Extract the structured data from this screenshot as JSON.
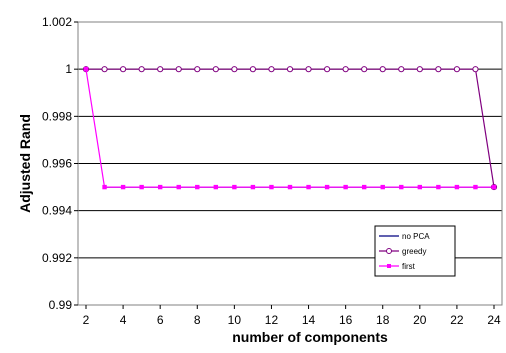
{
  "chart_data": {
    "type": "line",
    "xlabel": "number of components",
    "ylabel": "Adjusted Rand",
    "xlim": [
      2,
      24
    ],
    "ylim": [
      0.99,
      1.002
    ],
    "x_ticks": [
      2,
      4,
      6,
      8,
      10,
      12,
      14,
      16,
      18,
      20,
      22,
      24
    ],
    "y_ticks": [
      0.99,
      0.992,
      0.994,
      0.996,
      0.998,
      1,
      1.002
    ],
    "y_tick_labels": [
      "0.99",
      "0.992",
      "0.994",
      "0.996",
      "0.998",
      "1",
      "1.002"
    ],
    "grid": "horizontal",
    "legend_position": "bottom-right",
    "x": [
      2,
      3,
      4,
      5,
      6,
      7,
      8,
      9,
      10,
      11,
      12,
      13,
      14,
      15,
      16,
      17,
      18,
      19,
      20,
      21,
      22,
      23,
      24
    ],
    "series": [
      {
        "name": "no PCA",
        "color": "#000080",
        "marker": "none",
        "values": [
          0.995,
          0.995,
          0.995,
          0.995,
          0.995,
          0.995,
          0.995,
          0.995,
          0.995,
          0.995,
          0.995,
          0.995,
          0.995,
          0.995,
          0.995,
          0.995,
          0.995,
          0.995,
          0.995,
          0.995,
          0.995,
          0.995,
          0.995
        ]
      },
      {
        "name": "greedy",
        "color": "#800080",
        "marker": "circle",
        "values": [
          1,
          1,
          1,
          1,
          1,
          1,
          1,
          1,
          1,
          1,
          1,
          1,
          1,
          1,
          1,
          1,
          1,
          1,
          1,
          1,
          1,
          1,
          0.995
        ]
      },
      {
        "name": "first",
        "color": "#ff00ff",
        "marker": "square",
        "values": [
          1,
          0.995,
          0.995,
          0.995,
          0.995,
          0.995,
          0.995,
          0.995,
          0.995,
          0.995,
          0.995,
          0.995,
          0.995,
          0.995,
          0.995,
          0.995,
          0.995,
          0.995,
          0.995,
          0.995,
          0.995,
          0.995,
          0.995
        ]
      }
    ]
  }
}
